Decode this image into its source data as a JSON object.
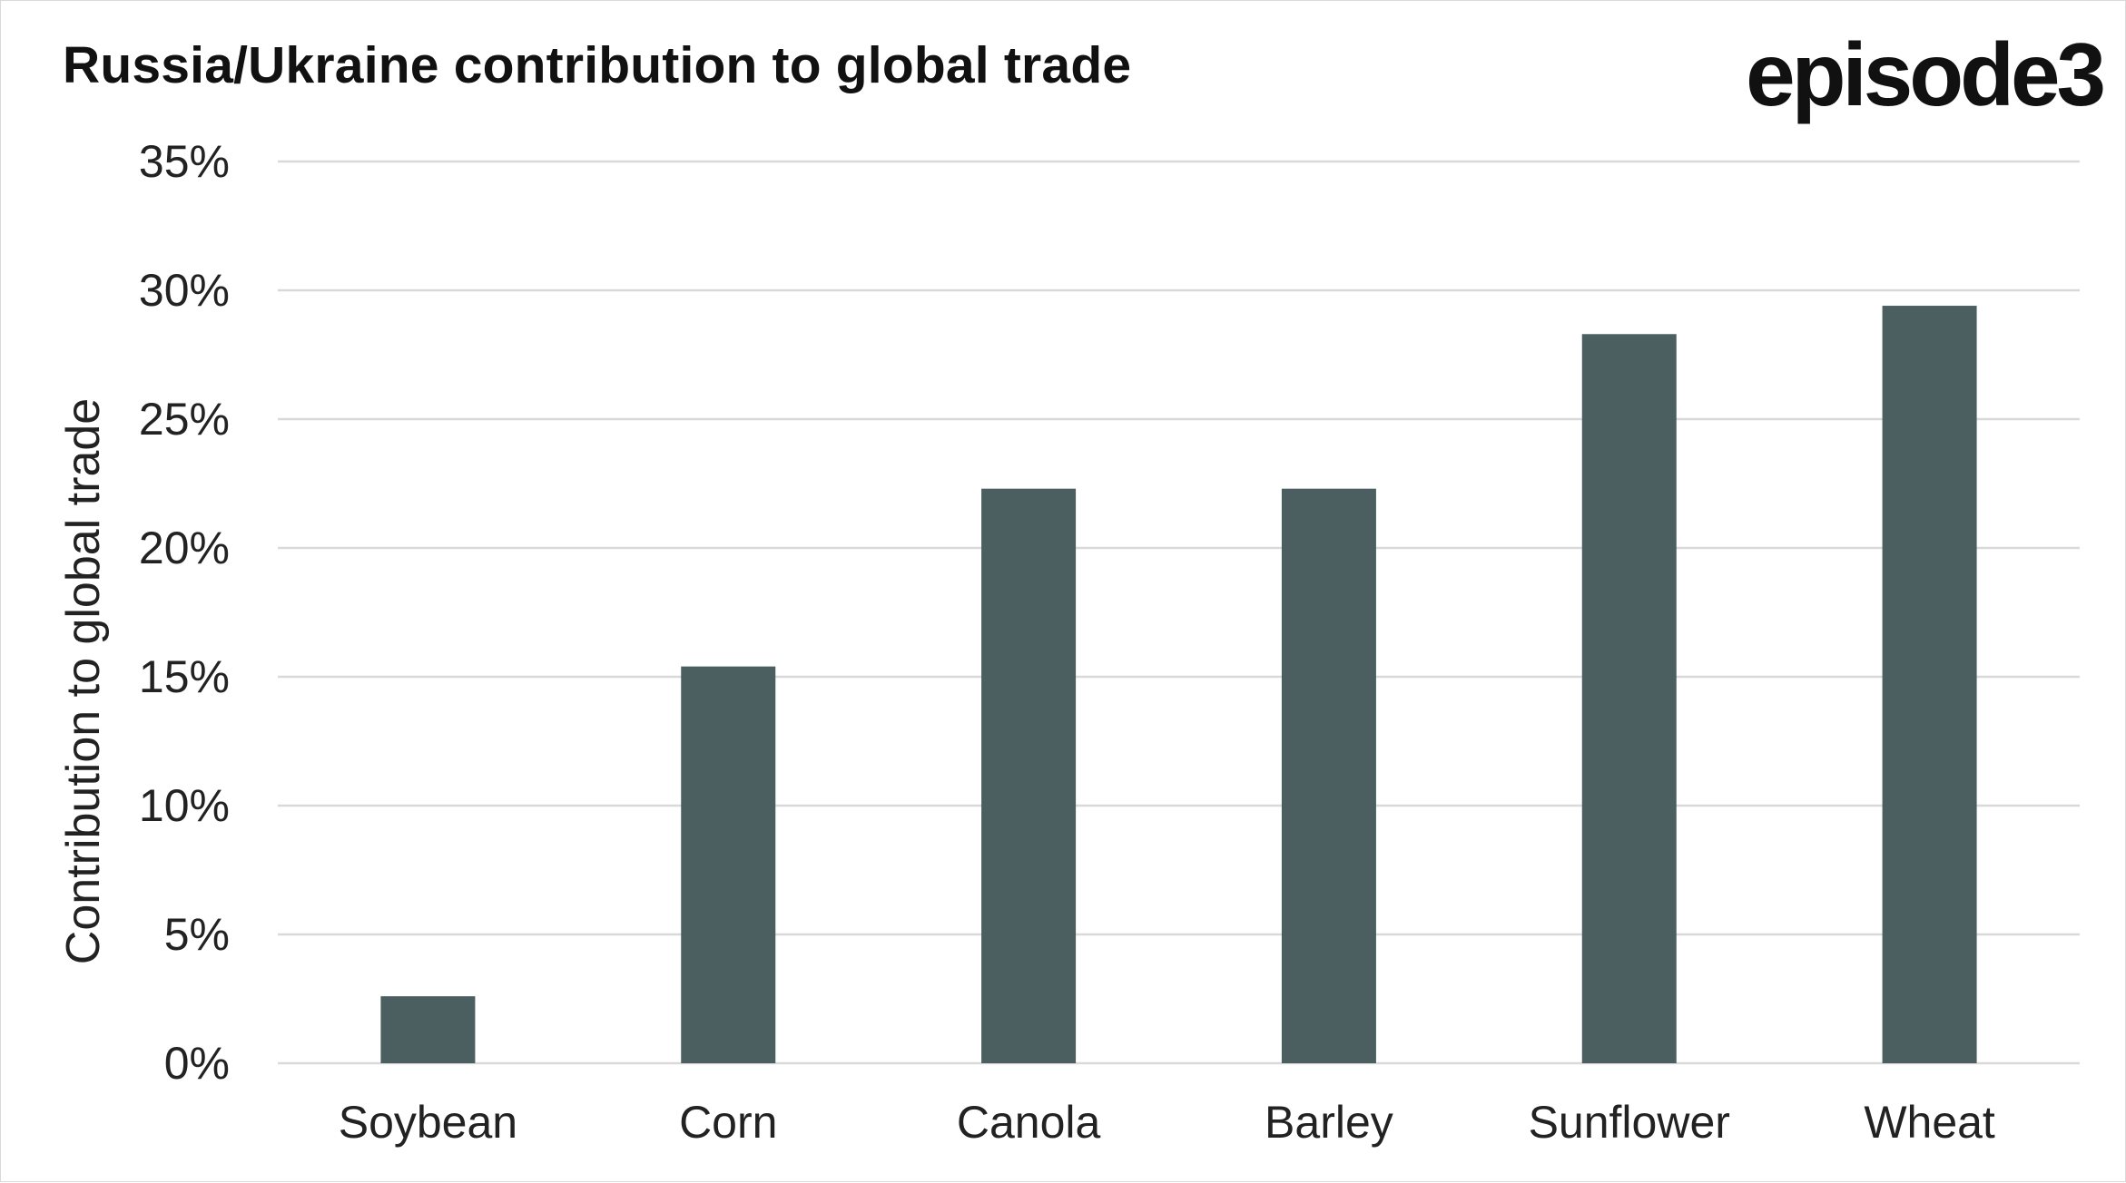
{
  "header": {
    "title": "Russia/Ukraine contribution to global trade",
    "brand": "episode3"
  },
  "colors": {
    "bar": "#4b5e60",
    "grid": "#d9d9d9",
    "text": "#222222"
  },
  "chart_data": {
    "type": "bar",
    "title": "Russia/Ukraine contribution to global trade",
    "xlabel": "",
    "ylabel": "Contribution to global trade",
    "categories": [
      "Soybean",
      "Corn",
      "Canola",
      "Barley",
      "Sunflower",
      "Wheat"
    ],
    "values": [
      2.6,
      15.4,
      22.3,
      22.3,
      28.3,
      29.4
    ],
    "ylim": [
      0,
      35
    ],
    "yticks": [
      0,
      5,
      10,
      15,
      20,
      25,
      30,
      35
    ],
    "ytick_format": "percent",
    "grid": true,
    "legend": "none"
  }
}
